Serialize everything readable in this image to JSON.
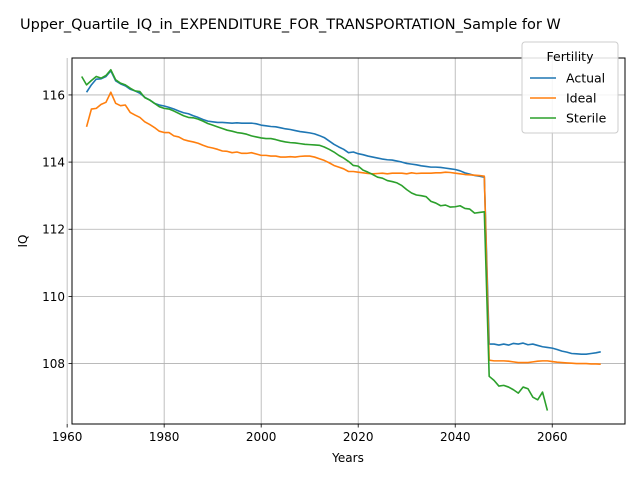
{
  "chart_data": {
    "type": "line",
    "title": "Upper_Quartile_IQ_in_EXPENDITURE_FOR_TRANSPORTATION_Sample for W",
    "xlabel": "Years",
    "ylabel": "IQ",
    "xlim": [
      1961,
      2075
    ],
    "ylim": [
      106.2,
      117.1
    ],
    "x_ticks": [
      1960,
      1980,
      2000,
      2020,
      2040,
      2060
    ],
    "y_ticks": [
      108,
      110,
      112,
      114,
      116
    ],
    "grid": true,
    "legend": {
      "title": "Fertility",
      "position": "top-right"
    },
    "series": [
      {
        "name": "Actual",
        "color": "#1f77b4",
        "x": [
          1964,
          1965,
          1966,
          1967,
          1968,
          1969,
          1970,
          1971,
          1972,
          1973,
          1974,
          1975,
          1976,
          1977,
          1978,
          1979,
          1980,
          1981,
          1982,
          1983,
          1984,
          1985,
          1986,
          1987,
          1988,
          1989,
          1990,
          1991,
          1992,
          1993,
          1994,
          1995,
          1996,
          1997,
          1998,
          1999,
          2000,
          2001,
          2002,
          2003,
          2004,
          2005,
          2006,
          2007,
          2008,
          2009,
          2010,
          2011,
          2012,
          2013,
          2014,
          2015,
          2016,
          2017,
          2018,
          2019,
          2020,
          2021,
          2022,
          2023,
          2024,
          2025,
          2026,
          2027,
          2028,
          2029,
          2030,
          2031,
          2032,
          2033,
          2034,
          2035,
          2036,
          2037,
          2038,
          2039,
          2040,
          2041,
          2042,
          2043,
          2044,
          2045,
          2046,
          2047,
          2048,
          2049,
          2050,
          2051,
          2052,
          2053,
          2054,
          2055,
          2056,
          2057,
          2058,
          2059,
          2060,
          2061,
          2062,
          2063,
          2064,
          2065,
          2066,
          2067,
          2068,
          2069,
          2070
        ],
        "y": [
          116.08,
          116.3,
          116.47,
          116.48,
          116.55,
          116.72,
          116.42,
          116.33,
          116.27,
          116.17,
          116.12,
          116.05,
          115.93,
          115.85,
          115.75,
          115.7,
          115.67,
          115.63,
          115.58,
          115.52,
          115.47,
          115.44,
          115.38,
          115.33,
          115.27,
          115.22,
          115.2,
          115.18,
          115.18,
          115.17,
          115.16,
          115.17,
          115.16,
          115.16,
          115.16,
          115.14,
          115.1,
          115.08,
          115.06,
          115.05,
          115.02,
          114.99,
          114.97,
          114.94,
          114.91,
          114.89,
          114.87,
          114.84,
          114.79,
          114.73,
          114.63,
          114.53,
          114.45,
          114.38,
          114.28,
          114.3,
          114.25,
          114.22,
          114.18,
          114.15,
          114.12,
          114.09,
          114.07,
          114.06,
          114.03,
          114.0,
          113.96,
          113.94,
          113.92,
          113.89,
          113.87,
          113.85,
          113.85,
          113.84,
          113.82,
          113.8,
          113.78,
          113.74,
          113.68,
          113.64,
          113.6,
          113.58,
          113.55,
          108.58,
          108.58,
          108.55,
          108.58,
          108.55,
          108.6,
          108.58,
          108.61,
          108.56,
          108.58,
          108.54,
          108.5,
          108.48,
          108.46,
          108.42,
          108.37,
          108.34,
          108.3,
          108.29,
          108.28,
          108.28,
          108.3,
          108.32,
          108.35
        ]
      },
      {
        "name": "Ideal",
        "color": "#ff7f0e",
        "x": [
          1964,
          1965,
          1966,
          1967,
          1968,
          1969,
          1970,
          1971,
          1972,
          1973,
          1974,
          1975,
          1976,
          1977,
          1978,
          1979,
          1980,
          1981,
          1982,
          1983,
          1984,
          1985,
          1986,
          1987,
          1988,
          1989,
          1990,
          1991,
          1992,
          1993,
          1994,
          1995,
          1996,
          1997,
          1998,
          1999,
          2000,
          2001,
          2002,
          2003,
          2004,
          2005,
          2006,
          2007,
          2008,
          2009,
          2010,
          2011,
          2012,
          2013,
          2014,
          2015,
          2016,
          2017,
          2018,
          2019,
          2020,
          2021,
          2022,
          2023,
          2024,
          2025,
          2026,
          2027,
          2028,
          2029,
          2030,
          2031,
          2032,
          2033,
          2034,
          2035,
          2036,
          2037,
          2038,
          2039,
          2040,
          2041,
          2042,
          2043,
          2044,
          2045,
          2046,
          2047,
          2048,
          2049,
          2050,
          2051,
          2052,
          2053,
          2054,
          2055,
          2056,
          2057,
          2058,
          2059,
          2060,
          2061,
          2062,
          2063,
          2064,
          2065,
          2066,
          2067,
          2068,
          2069,
          2070
        ],
        "y": [
          115.05,
          115.58,
          115.6,
          115.72,
          115.78,
          116.08,
          115.75,
          115.68,
          115.7,
          115.48,
          115.4,
          115.33,
          115.2,
          115.12,
          115.03,
          114.92,
          114.88,
          114.88,
          114.78,
          114.75,
          114.67,
          114.63,
          114.6,
          114.56,
          114.5,
          114.45,
          114.42,
          114.38,
          114.33,
          114.32,
          114.28,
          114.3,
          114.26,
          114.26,
          114.28,
          114.24,
          114.2,
          114.2,
          114.18,
          114.18,
          114.15,
          114.15,
          114.16,
          114.15,
          114.17,
          114.18,
          114.18,
          114.15,
          114.1,
          114.05,
          113.98,
          113.9,
          113.85,
          113.8,
          113.72,
          113.72,
          113.7,
          113.68,
          113.66,
          113.65,
          113.66,
          113.67,
          113.65,
          113.67,
          113.67,
          113.67,
          113.65,
          113.68,
          113.66,
          113.67,
          113.67,
          113.67,
          113.68,
          113.68,
          113.7,
          113.69,
          113.67,
          113.65,
          113.63,
          113.62,
          113.61,
          113.6,
          113.58,
          108.1,
          108.08,
          108.08,
          108.08,
          108.07,
          108.05,
          108.03,
          108.03,
          108.03,
          108.05,
          108.07,
          108.08,
          108.08,
          108.06,
          108.04,
          108.03,
          108.02,
          108.01,
          108.0,
          108.0,
          108.0,
          107.99,
          107.99,
          107.98
        ]
      },
      {
        "name": "Sterile",
        "color": "#2ca02c",
        "x": [
          1963,
          1964,
          1965,
          1966,
          1967,
          1968,
          1969,
          1970,
          1971,
          1972,
          1973,
          1974,
          1975,
          1976,
          1977,
          1978,
          1979,
          1980,
          1981,
          1982,
          1983,
          1984,
          1985,
          1986,
          1987,
          1988,
          1989,
          1990,
          1991,
          1992,
          1993,
          1994,
          1995,
          1996,
          1997,
          1998,
          1999,
          2000,
          2001,
          2002,
          2003,
          2004,
          2005,
          2006,
          2007,
          2008,
          2009,
          2010,
          2011,
          2012,
          2013,
          2014,
          2015,
          2016,
          2017,
          2018,
          2019,
          2020,
          2021,
          2022,
          2023,
          2024,
          2025,
          2026,
          2027,
          2028,
          2029,
          2030,
          2031,
          2032,
          2033,
          2034,
          2035,
          2036,
          2037,
          2038,
          2039,
          2040,
          2041,
          2042,
          2043,
          2044,
          2045,
          2046,
          2047,
          2048,
          2049,
          2050,
          2051,
          2052,
          2053,
          2054,
          2055,
          2056,
          2057,
          2058,
          2059
        ],
        "y": [
          116.55,
          116.3,
          116.43,
          116.55,
          116.5,
          116.58,
          116.75,
          116.45,
          116.35,
          116.3,
          116.2,
          116.12,
          116.1,
          115.92,
          115.85,
          115.75,
          115.65,
          115.6,
          115.58,
          115.52,
          115.45,
          115.38,
          115.33,
          115.32,
          115.28,
          115.22,
          115.15,
          115.1,
          115.05,
          115.0,
          114.95,
          114.92,
          114.88,
          114.86,
          114.83,
          114.78,
          114.75,
          114.72,
          114.7,
          114.7,
          114.67,
          114.63,
          114.6,
          114.58,
          114.57,
          114.55,
          114.53,
          114.52,
          114.51,
          114.5,
          114.45,
          114.38,
          114.3,
          114.2,
          114.12,
          114.02,
          113.9,
          113.88,
          113.76,
          113.7,
          113.63,
          113.55,
          113.52,
          113.45,
          113.42,
          113.38,
          113.3,
          113.18,
          113.08,
          113.02,
          113.0,
          112.97,
          112.83,
          112.78,
          112.7,
          112.72,
          112.66,
          112.67,
          112.7,
          112.62,
          112.6,
          112.48,
          112.5,
          112.52,
          107.62,
          107.5,
          107.33,
          107.35,
          107.3,
          107.22,
          107.12,
          107.3,
          107.25,
          107.0,
          106.92,
          107.15,
          106.6
        ]
      }
    ]
  }
}
